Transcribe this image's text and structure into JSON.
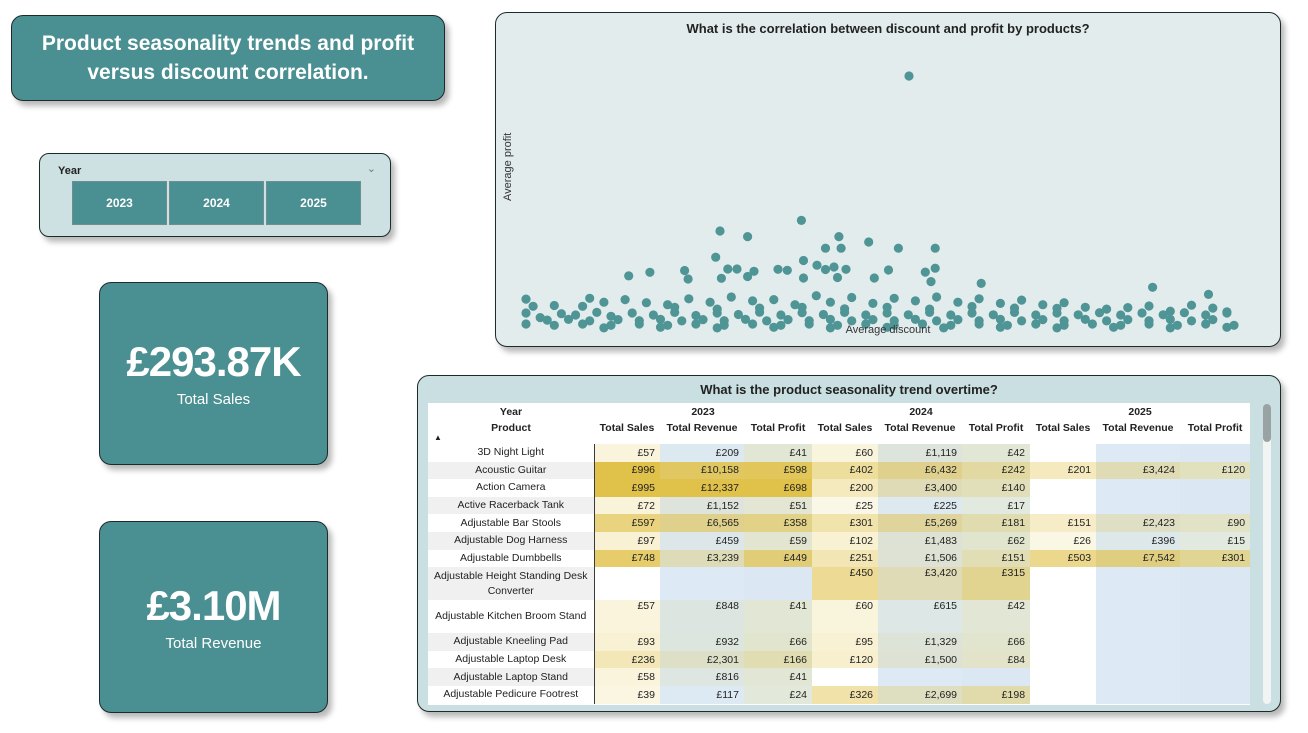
{
  "header": {
    "title": "Product seasonality trends and profit versus discount correlation."
  },
  "slicer": {
    "title": "Year",
    "options": [
      "2023",
      "2024",
      "2025"
    ]
  },
  "kpis": {
    "sales": {
      "value": "£293.87K",
      "label": "Total Sales"
    },
    "revenue": {
      "value": "£3.10M",
      "label": "Total Revenue"
    }
  },
  "colors": {
    "accent": "#4a8f92",
    "point": "#4f9596",
    "heat_high": "#e0c14a",
    "revenue_cell": "#dde9f5"
  },
  "chart_data": {
    "type": "scatter",
    "title": "What is the correlation between discount and profit by products?",
    "xlabel": "Average discount",
    "ylabel": "Average profit",
    "grid": false,
    "points": [
      [
        0.541,
        1.0
      ],
      [
        0.389,
        0.438
      ],
      [
        0.274,
        0.397
      ],
      [
        0.313,
        0.375
      ],
      [
        0.442,
        0.375
      ],
      [
        0.484,
        0.354
      ],
      [
        0.423,
        0.33
      ],
      [
        0.445,
        0.33
      ],
      [
        0.526,
        0.33
      ],
      [
        0.578,
        0.33
      ],
      [
        0.268,
        0.295
      ],
      [
        0.392,
        0.282
      ],
      [
        0.411,
        0.264
      ],
      [
        0.435,
        0.257
      ],
      [
        0.578,
        0.252
      ],
      [
        0.175,
        0.236
      ],
      [
        0.224,
        0.243
      ],
      [
        0.285,
        0.249
      ],
      [
        0.298,
        0.249
      ],
      [
        0.322,
        0.24
      ],
      [
        0.356,
        0.248
      ],
      [
        0.369,
        0.244
      ],
      [
        0.423,
        0.247
      ],
      [
        0.452,
        0.248
      ],
      [
        0.512,
        0.245
      ],
      [
        0.564,
        0.237
      ],
      [
        0.145,
        0.222
      ],
      [
        0.229,
        0.21
      ],
      [
        0.276,
        0.213
      ],
      [
        0.313,
        0.22
      ],
      [
        0.392,
        0.214
      ],
      [
        0.44,
        0.216
      ],
      [
        0.492,
        0.214
      ],
      [
        0.572,
        0.2
      ],
      [
        0.643,
        0.193
      ],
      [
        0.885,
        0.178
      ],
      [
        0.964,
        0.15
      ],
      [
        0.0,
        0.132
      ],
      [
        0.01,
        0.104
      ],
      [
        0.04,
        0.107
      ],
      [
        0.08,
        0.104
      ],
      [
        0.11,
        0.12
      ],
      [
        0.09,
        0.135
      ],
      [
        0.14,
        0.13
      ],
      [
        0.17,
        0.118
      ],
      [
        0.2,
        0.11
      ],
      [
        0.23,
        0.133
      ],
      [
        0.26,
        0.12
      ],
      [
        0.29,
        0.14
      ],
      [
        0.32,
        0.125
      ],
      [
        0.35,
        0.13
      ],
      [
        0.38,
        0.11
      ],
      [
        0.41,
        0.145
      ],
      [
        0.43,
        0.12
      ],
      [
        0.46,
        0.138
      ],
      [
        0.49,
        0.115
      ],
      [
        0.52,
        0.135
      ],
      [
        0.55,
        0.125
      ],
      [
        0.58,
        0.14
      ],
      [
        0.61,
        0.12
      ],
      [
        0.64,
        0.133
      ],
      [
        0.67,
        0.115
      ],
      [
        0.7,
        0.128
      ],
      [
        0.73,
        0.11
      ],
      [
        0.76,
        0.118
      ],
      [
        0.79,
        0.1
      ],
      [
        0.82,
        0.093
      ],
      [
        0.85,
        0.099
      ],
      [
        0.88,
        0.105
      ],
      [
        0.91,
        0.085
      ],
      [
        0.94,
        0.108
      ],
      [
        0.97,
        0.097
      ],
      [
        0.99,
        0.082
      ],
      [
        0.21,
        0.1
      ],
      [
        0.27,
        0.093
      ],
      [
        0.33,
        0.097
      ],
      [
        0.39,
        0.1
      ],
      [
        0.45,
        0.094
      ],
      [
        0.51,
        0.1
      ],
      [
        0.57,
        0.093
      ],
      [
        0.63,
        0.103
      ],
      [
        0.69,
        0.097
      ],
      [
        0.75,
        0.096
      ],
      [
        0.0,
        0.078
      ],
      [
        0.02,
        0.06
      ],
      [
        0.05,
        0.075
      ],
      [
        0.07,
        0.07
      ],
      [
        0.1,
        0.08
      ],
      [
        0.12,
        0.065
      ],
      [
        0.15,
        0.078
      ],
      [
        0.18,
        0.07
      ],
      [
        0.21,
        0.08
      ],
      [
        0.24,
        0.068
      ],
      [
        0.27,
        0.078
      ],
      [
        0.3,
        0.072
      ],
      [
        0.33,
        0.081
      ],
      [
        0.36,
        0.07
      ],
      [
        0.39,
        0.079
      ],
      [
        0.42,
        0.072
      ],
      [
        0.45,
        0.08
      ],
      [
        0.48,
        0.07
      ],
      [
        0.51,
        0.078
      ],
      [
        0.54,
        0.071
      ],
      [
        0.57,
        0.08
      ],
      [
        0.6,
        0.07
      ],
      [
        0.63,
        0.078
      ],
      [
        0.66,
        0.071
      ],
      [
        0.69,
        0.08
      ],
      [
        0.72,
        0.07
      ],
      [
        0.75,
        0.078
      ],
      [
        0.78,
        0.071
      ],
      [
        0.81,
        0.079
      ],
      [
        0.84,
        0.07
      ],
      [
        0.87,
        0.078
      ],
      [
        0.9,
        0.071
      ],
      [
        0.93,
        0.079
      ],
      [
        0.96,
        0.07
      ],
      [
        0.99,
        0.078
      ],
      [
        0.03,
        0.05
      ],
      [
        0.06,
        0.053
      ],
      [
        0.09,
        0.047
      ],
      [
        0.13,
        0.052
      ],
      [
        0.16,
        0.048
      ],
      [
        0.19,
        0.053
      ],
      [
        0.22,
        0.047
      ],
      [
        0.25,
        0.052
      ],
      [
        0.28,
        0.048
      ],
      [
        0.31,
        0.053
      ],
      [
        0.34,
        0.047
      ],
      [
        0.37,
        0.052
      ],
      [
        0.4,
        0.048
      ],
      [
        0.43,
        0.053
      ],
      [
        0.46,
        0.047
      ],
      [
        0.49,
        0.052
      ],
      [
        0.52,
        0.048
      ],
      [
        0.55,
        0.053
      ],
      [
        0.58,
        0.047
      ],
      [
        0.61,
        0.052
      ],
      [
        0.64,
        0.048
      ],
      [
        0.67,
        0.053
      ],
      [
        0.7,
        0.047
      ],
      [
        0.73,
        0.052
      ],
      [
        0.76,
        0.048
      ],
      [
        0.79,
        0.053
      ],
      [
        0.82,
        0.047
      ],
      [
        0.85,
        0.052
      ],
      [
        0.88,
        0.048
      ],
      [
        0.91,
        0.053
      ],
      [
        0.94,
        0.047
      ],
      [
        0.97,
        0.052
      ],
      [
        0.0,
        0.035
      ],
      [
        0.04,
        0.03
      ],
      [
        0.08,
        0.035
      ],
      [
        0.12,
        0.03
      ],
      [
        0.16,
        0.035
      ],
      [
        0.2,
        0.03
      ],
      [
        0.24,
        0.035
      ],
      [
        0.28,
        0.03
      ],
      [
        0.32,
        0.035
      ],
      [
        0.36,
        0.03
      ],
      [
        0.4,
        0.035
      ],
      [
        0.44,
        0.03
      ],
      [
        0.48,
        0.035
      ],
      [
        0.52,
        0.03
      ],
      [
        0.56,
        0.035
      ],
      [
        0.6,
        0.03
      ],
      [
        0.64,
        0.035
      ],
      [
        0.68,
        0.03
      ],
      [
        0.72,
        0.035
      ],
      [
        0.76,
        0.03
      ],
      [
        0.8,
        0.035
      ],
      [
        0.84,
        0.03
      ],
      [
        0.88,
        0.035
      ],
      [
        0.92,
        0.03
      ],
      [
        0.96,
        0.035
      ],
      [
        1.0,
        0.03
      ],
      [
        0.11,
        0.02
      ],
      [
        0.19,
        0.022
      ],
      [
        0.27,
        0.02
      ],
      [
        0.35,
        0.022
      ],
      [
        0.43,
        0.02
      ],
      [
        0.51,
        0.022
      ],
      [
        0.59,
        0.02
      ],
      [
        0.67,
        0.022
      ],
      [
        0.75,
        0.02
      ],
      [
        0.83,
        0.022
      ],
      [
        0.91,
        0.02
      ],
      [
        0.99,
        0.022
      ]
    ]
  },
  "matrix": {
    "title": "What is the product seasonality trend overtime?",
    "year_header": "Year",
    "product_header": "Product",
    "years": [
      "2023",
      "2024",
      "2025"
    ],
    "measures": [
      "Total Sales",
      "Total Revenue",
      "Total Profit"
    ],
    "rows": [
      {
        "product": "3D Night Light",
        "values": [
          "£57",
          "£209",
          "£41",
          "£60",
          "£1,119",
          "£42",
          "",
          "",
          ""
        ]
      },
      {
        "product": "Acoustic Guitar",
        "values": [
          "£996",
          "£10,158",
          "£598",
          "£402",
          "£6,432",
          "£242",
          "£201",
          "£3,424",
          "£120"
        ]
      },
      {
        "product": "Action Camera",
        "values": [
          "£995",
          "£12,337",
          "£698",
          "£200",
          "£3,400",
          "£140",
          "",
          "",
          ""
        ]
      },
      {
        "product": "Active Racerback Tank",
        "values": [
          "£72",
          "£1,152",
          "£51",
          "£25",
          "£225",
          "£17",
          "",
          "",
          ""
        ]
      },
      {
        "product": "Adjustable Bar Stools",
        "values": [
          "£597",
          "£6,565",
          "£358",
          "£301",
          "£5,269",
          "£181",
          "£151",
          "£2,423",
          "£90"
        ]
      },
      {
        "product": "Adjustable Dog Harness",
        "values": [
          "£97",
          "£459",
          "£59",
          "£102",
          "£1,483",
          "£62",
          "£26",
          "£396",
          "£15"
        ]
      },
      {
        "product": "Adjustable Dumbbells",
        "values": [
          "£748",
          "£3,239",
          "£449",
          "£251",
          "£1,506",
          "£151",
          "£503",
          "£7,542",
          "£301"
        ]
      },
      {
        "product": "Adjustable Height Standing Desk Converter",
        "values": [
          "",
          "",
          "",
          "£450",
          "£3,420",
          "£315",
          "",
          "",
          ""
        ]
      },
      {
        "product": "Adjustable Kitchen Broom Stand",
        "values": [
          "£57",
          "£848",
          "£41",
          "£60",
          "£615",
          "£42",
          "",
          "",
          ""
        ]
      },
      {
        "product": "Adjustable Kneeling Pad",
        "values": [
          "£93",
          "£932",
          "£66",
          "£95",
          "£1,329",
          "£66",
          "",
          "",
          ""
        ]
      },
      {
        "product": "Adjustable Laptop Desk",
        "values": [
          "£236",
          "£2,301",
          "£166",
          "£120",
          "£1,500",
          "£84",
          "",
          "",
          ""
        ]
      },
      {
        "product": "Adjustable Laptop Stand",
        "values": [
          "£58",
          "£816",
          "£41",
          "",
          "",
          "",
          "",
          "",
          ""
        ]
      },
      {
        "product": "Adjustable Pedicure Footrest",
        "values": [
          "£39",
          "£117",
          "£24",
          "£326",
          "£2,699",
          "£198",
          "",
          "",
          ""
        ]
      }
    ]
  }
}
